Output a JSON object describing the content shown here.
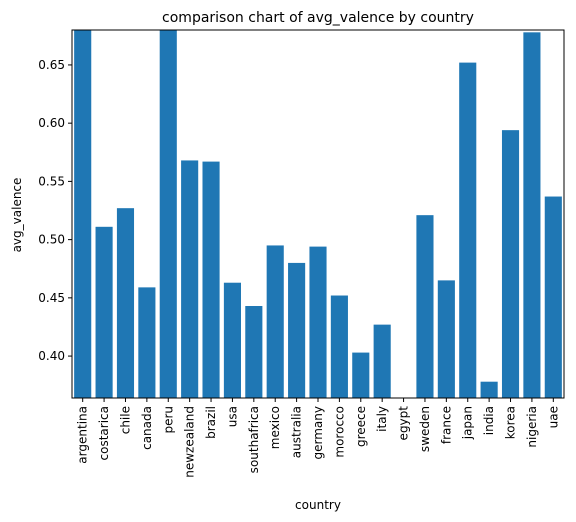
{
  "chart_data": {
    "type": "bar",
    "title": "comparison chart of avg_valence by country",
    "xlabel": "country",
    "ylabel": "avg_valence",
    "categories": [
      "argentina",
      "costarica",
      "chile",
      "canada",
      "peru",
      "newzealand",
      "brazil",
      "usa",
      "southafrica",
      "mexico",
      "australia",
      "germany",
      "morocco",
      "greece",
      "italy",
      "egypt",
      "sweden",
      "france",
      "japan",
      "india",
      "korea",
      "nigeria",
      "uae"
    ],
    "values": [
      0.681,
      0.511,
      0.527,
      0.459,
      0.681,
      0.568,
      0.567,
      0.463,
      0.443,
      0.495,
      0.48,
      0.494,
      0.452,
      0.403,
      0.427,
      0.364,
      0.521,
      0.465,
      0.652,
      0.378,
      0.594,
      0.678,
      0.537
    ],
    "ylim": [
      0.364,
      0.68
    ],
    "yticks": [
      "0.40",
      "0.45",
      "0.50",
      "0.55",
      "0.60",
      "0.65"
    ],
    "bar_color": "#1f77b4",
    "grid": false,
    "legend": "none"
  }
}
